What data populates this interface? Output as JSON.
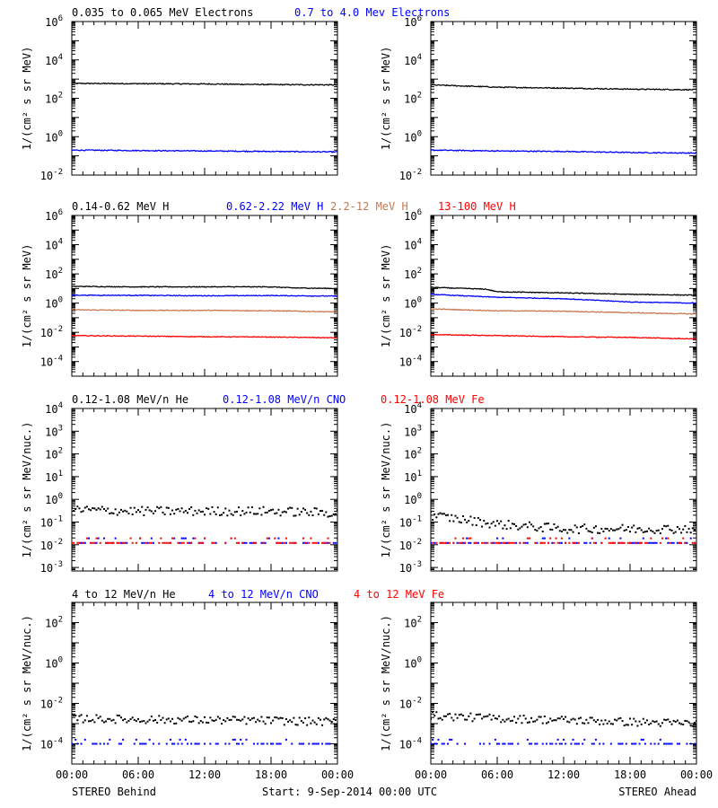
{
  "footer": {
    "left": "STEREO Behind",
    "center": "Start:  9-Sep-2014 00:00 UTC",
    "right": "STEREO Ahead"
  },
  "x_ticks": [
    "00:00",
    "06:00",
    "12:00",
    "18:00",
    "00:00"
  ],
  "chart_data": [
    {
      "type": "line",
      "legend": [
        {
          "text": "0.035 to 0.065 MeV Electrons",
          "color": "#000000"
        },
        {
          "text": "0.7 to 4.0 Mev Electrons",
          "color": "#0000ff"
        }
      ],
      "ylabel": "1/(cm² s sr MeV)",
      "yscale": "log",
      "ylim": [
        0.01,
        1000000
      ],
      "y_ticks": [
        0.01,
        1,
        100,
        10000,
        1000000
      ],
      "y_tick_labels": [
        [
          "10",
          "-2"
        ],
        [
          "10",
          "0"
        ],
        [
          "10",
          "2"
        ],
        [
          "10",
          "4"
        ],
        [
          "10",
          "6"
        ]
      ],
      "x_range_hours": [
        0,
        24
      ],
      "behind": {
        "series": [
          {
            "name": "0.035 to 0.065 MeV Electrons",
            "color": "#000000",
            "style": "line",
            "x": [
              0,
              6,
              12,
              18,
              24
            ],
            "y": [
              600,
              580,
              560,
              520,
              500
            ]
          },
          {
            "name": "0.7 to 4.0 Mev Electrons",
            "color": "#0000ff",
            "style": "line",
            "x": [
              0,
              6,
              12,
              18,
              24
            ],
            "y": [
              0.2,
              0.19,
              0.18,
              0.17,
              0.16
            ]
          }
        ]
      },
      "ahead": {
        "series": [
          {
            "name": "0.035 to 0.065 MeV Electrons",
            "color": "#000000",
            "style": "line",
            "x": [
              0,
              6,
              12,
              18,
              24
            ],
            "y": [
              500,
              380,
              340,
              300,
              280
            ]
          },
          {
            "name": "0.7 to 4.0 Mev Electrons",
            "color": "#0000ff",
            "style": "line",
            "x": [
              0,
              6,
              12,
              18,
              24
            ],
            "y": [
              0.2,
              0.18,
              0.17,
              0.15,
              0.14
            ]
          }
        ]
      }
    },
    {
      "type": "line",
      "legend": [
        {
          "text": "0.14-0.62 MeV H",
          "color": "#000000"
        },
        {
          "text": "0.62-2.22 MeV H",
          "color": "#0000ff"
        },
        {
          "text": "2.2-12 MeV H",
          "color": "#c87850"
        },
        {
          "text": "13-100 MeV H",
          "color": "#ff0000"
        }
      ],
      "ylabel": "1/(cm² s sr MeV)",
      "yscale": "log",
      "ylim": [
        1e-05,
        1000000
      ],
      "y_ticks": [
        0.0001,
        0.01,
        1,
        100,
        10000,
        1000000
      ],
      "y_tick_labels": [
        [
          "10",
          "-4"
        ],
        [
          "10",
          "-2"
        ],
        [
          "10",
          "0"
        ],
        [
          "10",
          "2"
        ],
        [
          "10",
          "4"
        ],
        [
          "10",
          "6"
        ]
      ],
      "x_range_hours": [
        0,
        24
      ],
      "behind": {
        "series": [
          {
            "name": "0.14-0.62 MeV H",
            "color": "#000000",
            "style": "line",
            "x": [
              0,
              6,
              12,
              18,
              20,
              24
            ],
            "y": [
              14,
              13,
              13,
              13,
              11,
              10
            ]
          },
          {
            "name": "0.62-2.22 MeV H",
            "color": "#0000ff",
            "style": "line",
            "x": [
              0,
              6,
              12,
              18,
              24
            ],
            "y": [
              3.5,
              3.4,
              3.2,
              3.3,
              3.0
            ]
          },
          {
            "name": "2.2-12 MeV H",
            "color": "#c87850",
            "style": "line",
            "x": [
              0,
              6,
              12,
              18,
              24
            ],
            "y": [
              0.35,
              0.32,
              0.32,
              0.3,
              0.25
            ]
          },
          {
            "name": "13-100 MeV H",
            "color": "#ff0000",
            "style": "line",
            "x": [
              0,
              6,
              12,
              18,
              24
            ],
            "y": [
              0.006,
              0.0055,
              0.005,
              0.0048,
              0.0042
            ]
          }
        ]
      },
      "ahead": {
        "series": [
          {
            "name": "0.14-0.62 MeV H",
            "color": "#000000",
            "style": "line",
            "x": [
              0,
              5,
              6,
              12,
              18,
              24
            ],
            "y": [
              12,
              9,
              6,
              5,
              4,
              3.5
            ]
          },
          {
            "name": "0.62-2.22 MeV H",
            "color": "#0000ff",
            "style": "line",
            "x": [
              0,
              6,
              12,
              18,
              24
            ],
            "y": [
              4,
              2.5,
              2,
              1.2,
              1.0
            ]
          },
          {
            "name": "2.2-12 MeV H",
            "color": "#c87850",
            "style": "line",
            "x": [
              0,
              6,
              12,
              18,
              24
            ],
            "y": [
              0.4,
              0.3,
              0.28,
              0.22,
              0.18
            ]
          },
          {
            "name": "13-100 MeV H",
            "color": "#ff0000",
            "style": "line",
            "x": [
              0,
              6,
              12,
              18,
              24
            ],
            "y": [
              0.007,
              0.006,
              0.005,
              0.0045,
              0.0035
            ]
          }
        ]
      }
    },
    {
      "type": "scatter",
      "legend": [
        {
          "text": "0.12-1.08 MeV/n He",
          "color": "#000000"
        },
        {
          "text": "0.12-1.08 MeV/n CNO",
          "color": "#0000ff"
        },
        {
          "text": "0.12-1.08 MeV Fe",
          "color": "#ff0000"
        }
      ],
      "ylabel": "1/(cm² s sr MeV/nuc.)",
      "yscale": "log",
      "ylim": [
        0.0007,
        10000
      ],
      "y_ticks": [
        0.001,
        0.01,
        0.1,
        1,
        10,
        100,
        1000,
        10000
      ],
      "y_tick_labels": [
        [
          "10",
          "-3"
        ],
        [
          "10",
          "-2"
        ],
        [
          "10",
          "-1"
        ],
        [
          "10",
          "0"
        ],
        [
          "10",
          "1"
        ],
        [
          "10",
          "2"
        ],
        [
          "10",
          "3"
        ],
        [
          "10",
          "4"
        ]
      ],
      "x_range_hours": [
        0,
        24
      ],
      "behind": {
        "series": [
          {
            "name": "0.12-1.08 MeV/n He",
            "color": "#000000",
            "style": "dots",
            "x": [
              0,
              6,
              12,
              18,
              24
            ],
            "y": [
              0.35,
              0.3,
              0.3,
              0.3,
              0.25
            ]
          },
          {
            "name": "0.12-1.08 MeV/n CNO",
            "color": "#0000ff",
            "style": "dots",
            "x": [
              0,
              6,
              12,
              18,
              24
            ],
            "y": [
              0.012,
              0.012,
              0.012,
              0.012,
              0.012
            ]
          },
          {
            "name": "0.12-1.08 MeV Fe",
            "color": "#ff0000",
            "style": "dots",
            "x": [
              0,
              6,
              12,
              18,
              24
            ],
            "y": [
              0.012,
              0.012,
              0.012,
              0.012,
              0.012
            ]
          }
        ]
      },
      "ahead": {
        "series": [
          {
            "name": "0.12-1.08 MeV/n He",
            "color": "#000000",
            "style": "dots",
            "x": [
              0,
              6,
              12,
              18,
              24
            ],
            "y": [
              0.2,
              0.08,
              0.05,
              0.05,
              0.05
            ]
          },
          {
            "name": "0.12-1.08 MeV/n CNO",
            "color": "#0000ff",
            "style": "dots",
            "x": [
              0,
              6,
              12,
              18,
              24
            ],
            "y": [
              0.012,
              0.012,
              0.012,
              0.012,
              0.012
            ]
          },
          {
            "name": "0.12-1.08 MeV Fe",
            "color": "#ff0000",
            "style": "dots",
            "x": [
              0,
              6,
              12,
              18,
              24
            ],
            "y": [
              0.012,
              0.012,
              0.012,
              0.012,
              0.012
            ]
          }
        ]
      }
    },
    {
      "type": "scatter",
      "legend": [
        {
          "text": "4 to 12 MeV/n He",
          "color": "#000000"
        },
        {
          "text": "4 to 12 MeV/n CNO",
          "color": "#0000ff"
        },
        {
          "text": "4 to 12 MeV Fe",
          "color": "#ff0000"
        }
      ],
      "ylabel": "1/(cm² s sr MeV/nuc.)",
      "yscale": "log",
      "ylim": [
        1e-05,
        1000
      ],
      "y_ticks": [
        0.0001,
        0.01,
        1,
        100
      ],
      "y_tick_labels": [
        [
          "10",
          "-4"
        ],
        [
          "10",
          "-2"
        ],
        [
          "10",
          "0"
        ],
        [
          "10",
          "2"
        ]
      ],
      "x_range_hours": [
        0,
        24
      ],
      "behind": {
        "series": [
          {
            "name": "4 to 12 MeV/n He",
            "color": "#000000",
            "style": "dots",
            "x": [
              0,
              6,
              12,
              18,
              24
            ],
            "y": [
              0.0018,
              0.0016,
              0.0015,
              0.0014,
              0.0012
            ]
          },
          {
            "name": "4 to 12 MeV/n CNO",
            "color": "#0000ff",
            "style": "dots",
            "x": [
              0,
              6,
              12,
              18,
              24
            ],
            "y": [
              0.0001,
              0.0001,
              0.0001,
              0.0001,
              0.0001
            ]
          }
        ]
      },
      "ahead": {
        "series": [
          {
            "name": "4 to 12 MeV/n He",
            "color": "#000000",
            "style": "dots",
            "x": [
              0,
              6,
              12,
              18,
              24
            ],
            "y": [
              0.0025,
              0.0018,
              0.0015,
              0.0012,
              0.001
            ]
          },
          {
            "name": "4 to 12 MeV/n CNO",
            "color": "#0000ff",
            "style": "dots",
            "x": [
              0,
              6,
              12,
              18,
              24
            ],
            "y": [
              0.0001,
              0.0001,
              0.0001,
              0.0001,
              0.0001
            ]
          }
        ]
      }
    }
  ]
}
